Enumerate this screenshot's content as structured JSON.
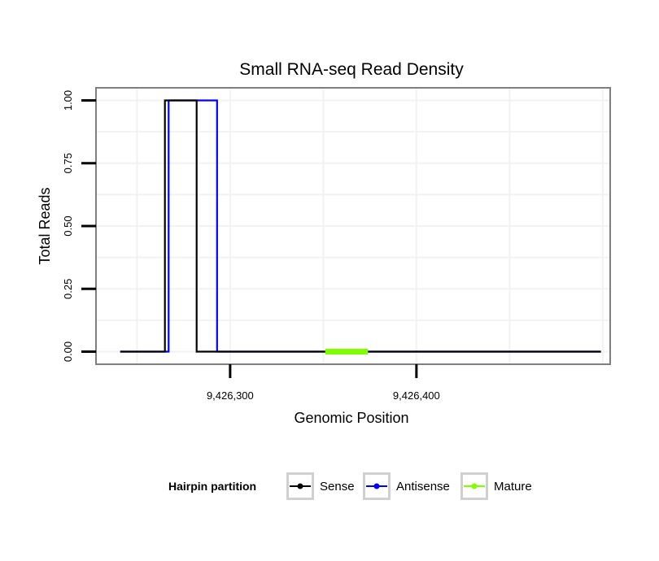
{
  "chart_data": {
    "type": "line",
    "title": "Small RNA-seq Read Density",
    "xlabel": "Genomic Position",
    "ylabel": "Total Reads",
    "xlim": [
      9426228,
      9426504
    ],
    "ylim": [
      -0.05,
      1.05
    ],
    "x_ticks": [
      {
        "value": 9426300,
        "label": "9,426,300"
      },
      {
        "value": 9426400,
        "label": "9,426,400"
      }
    ],
    "y_ticks": [
      {
        "value": 0,
        "label": "0.00"
      },
      {
        "value": 0.25,
        "label": "0.25"
      },
      {
        "value": 0.5,
        "label": "0.50"
      },
      {
        "value": 0.75,
        "label": "0.75"
      },
      {
        "value": 1,
        "label": "1.00"
      }
    ],
    "grid": true,
    "legend": {
      "title": "Hairpin partition",
      "position": "bottom"
    },
    "series": [
      {
        "name": "Sense",
        "color": "#000000",
        "x": [
          9426241,
          9426265,
          9426265,
          9426273,
          9426273,
          9426282,
          9426282,
          9426499
        ],
        "y": [
          0,
          0,
          1,
          1,
          1,
          1,
          0,
          0
        ]
      },
      {
        "name": "Antisense",
        "color": "#0000ff",
        "x": [
          9426241,
          9426267,
          9426267,
          9426293,
          9426293,
          9426499
        ],
        "y": [
          0,
          0,
          1,
          1,
          0,
          0
        ]
      },
      {
        "name": "Mature",
        "color": "#7fff00",
        "x": [
          9426351,
          9426374
        ],
        "y": [
          0,
          0
        ]
      }
    ]
  }
}
